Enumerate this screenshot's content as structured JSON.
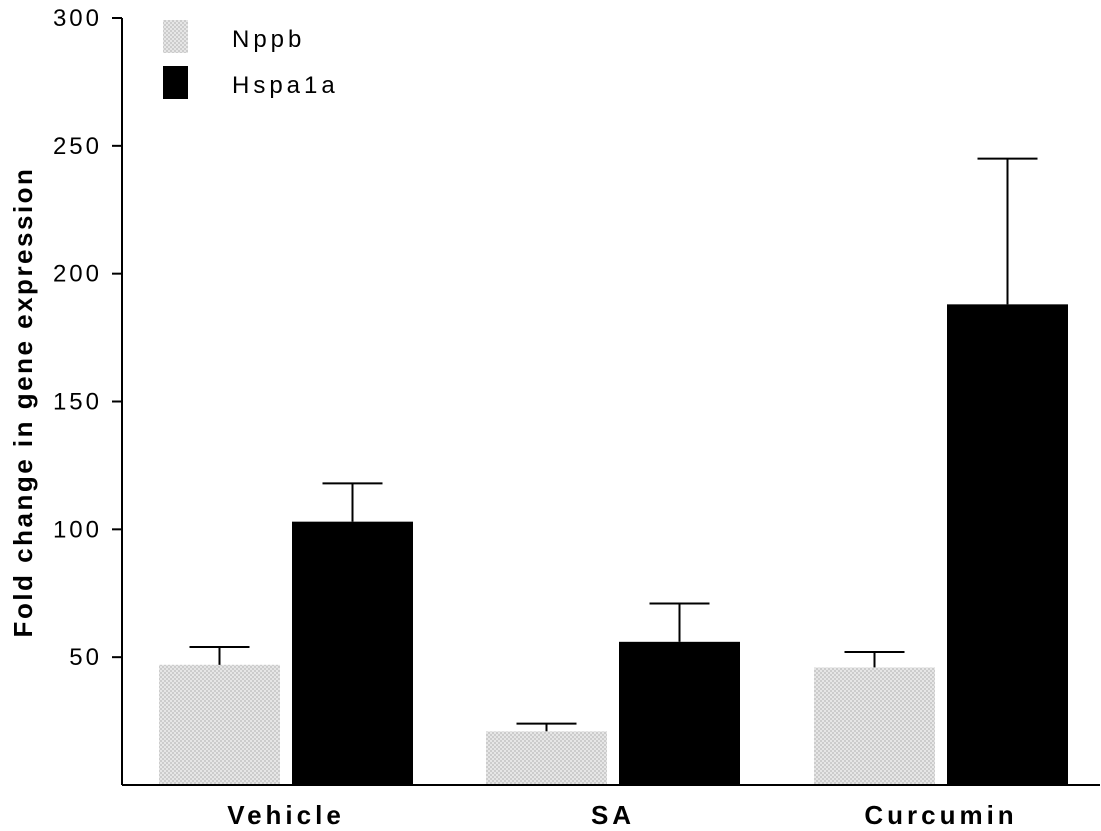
{
  "chart_data": {
    "type": "bar",
    "title": "",
    "xlabel": "",
    "ylabel": "Fold change in gene expression",
    "ylim": [
      0,
      300
    ],
    "yticks": [
      50,
      100,
      150,
      200,
      250,
      300
    ],
    "categories": [
      "Vehicle",
      "SA",
      "Curcumin"
    ],
    "series": [
      {
        "name": "Nppb",
        "values": [
          47,
          21,
          46
        ],
        "errors": [
          7,
          3,
          6
        ],
        "color": "#e3e3e3",
        "pattern": "dotted"
      },
      {
        "name": "Hspa1a",
        "values": [
          103,
          56,
          188
        ],
        "errors": [
          15,
          15,
          57
        ],
        "color": "#000000",
        "pattern": "solid"
      }
    ],
    "legend": "top-left",
    "grid": false
  }
}
